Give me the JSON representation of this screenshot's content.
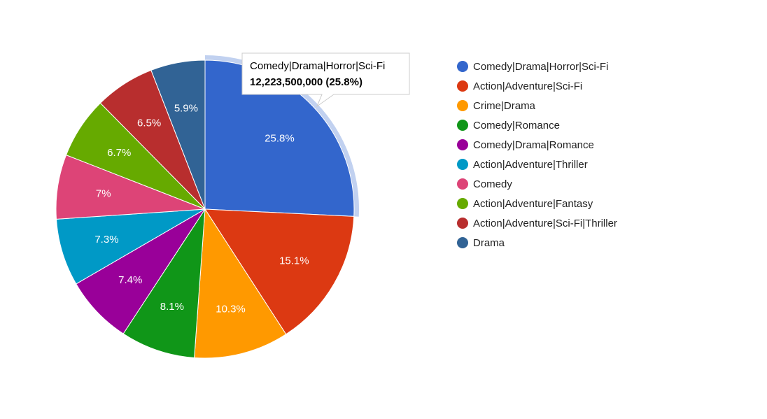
{
  "chart_data": {
    "type": "pie",
    "categories": [
      "Comedy|Drama|Horror|Sci-Fi",
      "Action|Adventure|Sci-Fi",
      "Crime|Drama",
      "Comedy|Romance",
      "Comedy|Drama|Romance",
      "Action|Adventure|Thriller",
      "Comedy",
      "Action|Adventure|Fantasy",
      "Action|Adventure|Sci-Fi|Thriller",
      "Drama"
    ],
    "values": [
      25.8,
      15.1,
      10.3,
      8.1,
      7.4,
      7.3,
      7.0,
      6.7,
      6.5,
      5.9
    ],
    "labels": [
      "25.8%",
      "15.1%",
      "10.3%",
      "8.1%",
      "7.4%",
      "7.3%",
      "7%",
      "6.7%",
      "6.5%",
      "5.9%"
    ],
    "colors": [
      "#3366cc",
      "#dc3912",
      "#ff9900",
      "#109618",
      "#990099",
      "#0099c6",
      "#dd4477",
      "#66aa00",
      "#b82e2e",
      "#316395"
    ],
    "legend_position": "right",
    "highlighted_index": 0,
    "tooltip": {
      "title": "Comedy|Drama|Horror|Sci-Fi",
      "value": "12,223,500,000 (25.8%)"
    }
  }
}
